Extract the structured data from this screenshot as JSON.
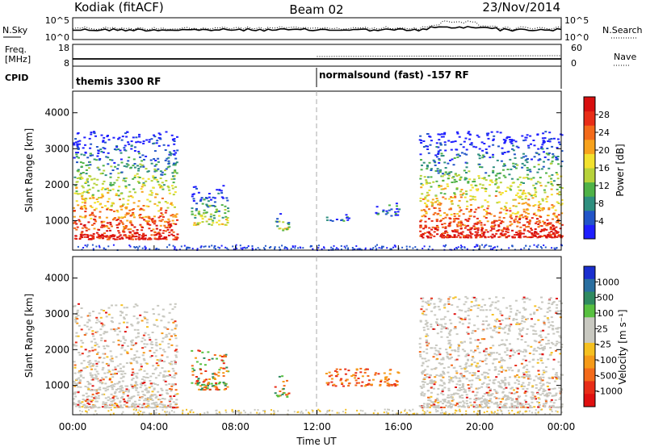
{
  "header": {
    "station": "Kodiak (fitACF)",
    "beam": "Beam 02",
    "date": "23/Nov/2014"
  },
  "summary": {
    "nsky_label": "N.Sky",
    "nsearch_label": "N.Search",
    "freq_label_line1": "Freq.",
    "freq_label_line2": "[MHz]",
    "nave_label": "Nave",
    "cpid_label": "CPID",
    "noise_ticks": [
      "10^5",
      "10^0"
    ],
    "freq_ticks": [
      "18",
      "8"
    ],
    "nave_ticks": [
      "60",
      "0"
    ],
    "cpid_segments": [
      {
        "label": "themis 3300 RF",
        "start_hour": 0,
        "end_hour": 12
      },
      {
        "label": "normalsound (fast) -157 RF",
        "start_hour": 12,
        "end_hour": 24
      }
    ]
  },
  "chart_data": [
    {
      "type": "heatmap",
      "title": "",
      "ylabel": "Slant Range [km]",
      "xlabel": "",
      "xlim": [
        0,
        24
      ],
      "ylim": [
        180,
        4600
      ],
      "yticks": [
        "1000",
        "2000",
        "3000",
        "4000"
      ],
      "colorbar": {
        "label": "Power [dB]",
        "ticks": [
          "4",
          "8",
          "12",
          "16",
          "20",
          "24",
          "28"
        ],
        "colors": [
          "#1f1fff",
          "#2255c8",
          "#2f8f7f",
          "#4fb247",
          "#b7d23a",
          "#f2e12e",
          "#f7a21d",
          "#f36a1a",
          "#e82d17",
          "#d80f0f"
        ]
      },
      "echo_regions": [
        {
          "t0": 0.0,
          "t1": 5.1,
          "r0": 500,
          "r1": 3500,
          "level": "strong"
        },
        {
          "t0": 5.8,
          "t1": 7.6,
          "r0": 900,
          "r1": 2000,
          "level": "moderate"
        },
        {
          "t0": 9.9,
          "t1": 10.6,
          "r0": 750,
          "r1": 1300,
          "level": "moderate"
        },
        {
          "t0": 12.4,
          "t1": 13.6,
          "r0": 1000,
          "r1": 1200,
          "level": "weak"
        },
        {
          "t0": 14.8,
          "t1": 16.0,
          "r0": 1150,
          "r1": 1500,
          "level": "weak"
        },
        {
          "t0": 17.0,
          "t1": 24.0,
          "r0": 550,
          "r1": 3500,
          "level": "strong"
        }
      ]
    },
    {
      "type": "heatmap",
      "title": "",
      "ylabel": "Slant Range [km]",
      "xlabel": "Time UT",
      "xlim": [
        0,
        24
      ],
      "ylim": [
        180,
        4600
      ],
      "yticks": [
        "1000",
        "2000",
        "3000",
        "4000"
      ],
      "xticks": [
        "00:00",
        "04:00",
        "08:00",
        "12:00",
        "16:00",
        "20:00",
        "00:00"
      ],
      "colorbar": {
        "label": "Velocity [m s⁻¹]",
        "ticks": [
          "1000",
          "500",
          "100",
          "25",
          "-25",
          "-100",
          "-500",
          "-1000"
        ],
        "colors": [
          "#1a2fcf",
          "#2a6fa0",
          "#2f8a60",
          "#58c040",
          "#c8c8c0",
          "#c8c8c0",
          "#f5c020",
          "#f59a18",
          "#f36a1a",
          "#e82d17",
          "#e01010"
        ]
      },
      "echo_regions": [
        {
          "t0": 0.0,
          "t1": 5.1,
          "r0": 400,
          "r1": 3300,
          "level": "ground"
        },
        {
          "t0": 5.8,
          "t1": 7.6,
          "r0": 900,
          "r1": 2000,
          "level": "mixed"
        },
        {
          "t0": 9.9,
          "t1": 10.6,
          "r0": 700,
          "r1": 1300,
          "level": "mixed"
        },
        {
          "t0": 12.4,
          "t1": 16.0,
          "r0": 1000,
          "r1": 1500,
          "level": "negative"
        },
        {
          "t0": 17.0,
          "t1": 24.0,
          "r0": 400,
          "r1": 3500,
          "level": "ground"
        }
      ]
    }
  ]
}
